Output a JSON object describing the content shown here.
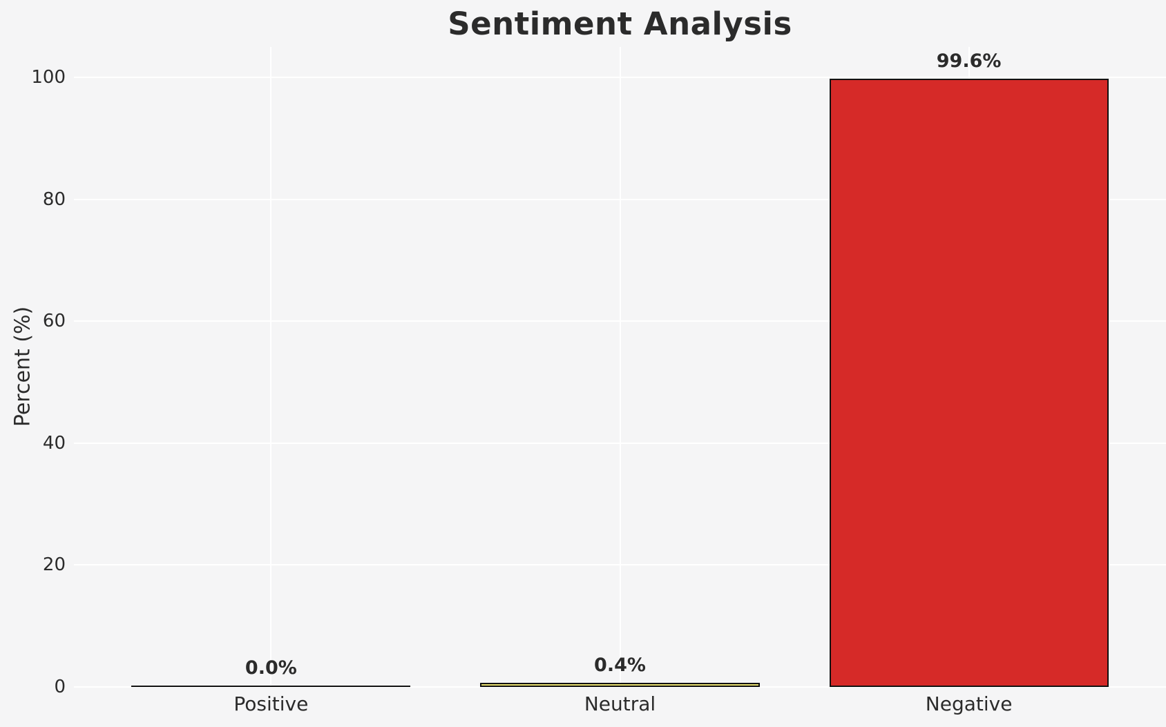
{
  "chart_data": {
    "type": "bar",
    "title": "Sentiment Analysis",
    "xlabel": "",
    "ylabel": "Percent (%)",
    "categories": [
      "Positive",
      "Neutral",
      "Negative"
    ],
    "values": [
      0.0,
      0.4,
      99.6
    ],
    "value_labels": [
      "0.0%",
      "0.4%",
      "99.6%"
    ],
    "bar_colors": [
      null,
      "#e8df6e",
      "#d62a28"
    ],
    "bar_edge_color": "#111111",
    "yticks": [
      "0",
      "20",
      "40",
      "60",
      "80",
      "100"
    ],
    "ytick_values": [
      0,
      20,
      40,
      60,
      80,
      100
    ],
    "ylim": [
      0,
      105
    ],
    "grid": "on",
    "grid_color": "#ffffff",
    "background_color": "#f5f5f6",
    "text_color": "#2b2b2b",
    "legend": "none"
  }
}
